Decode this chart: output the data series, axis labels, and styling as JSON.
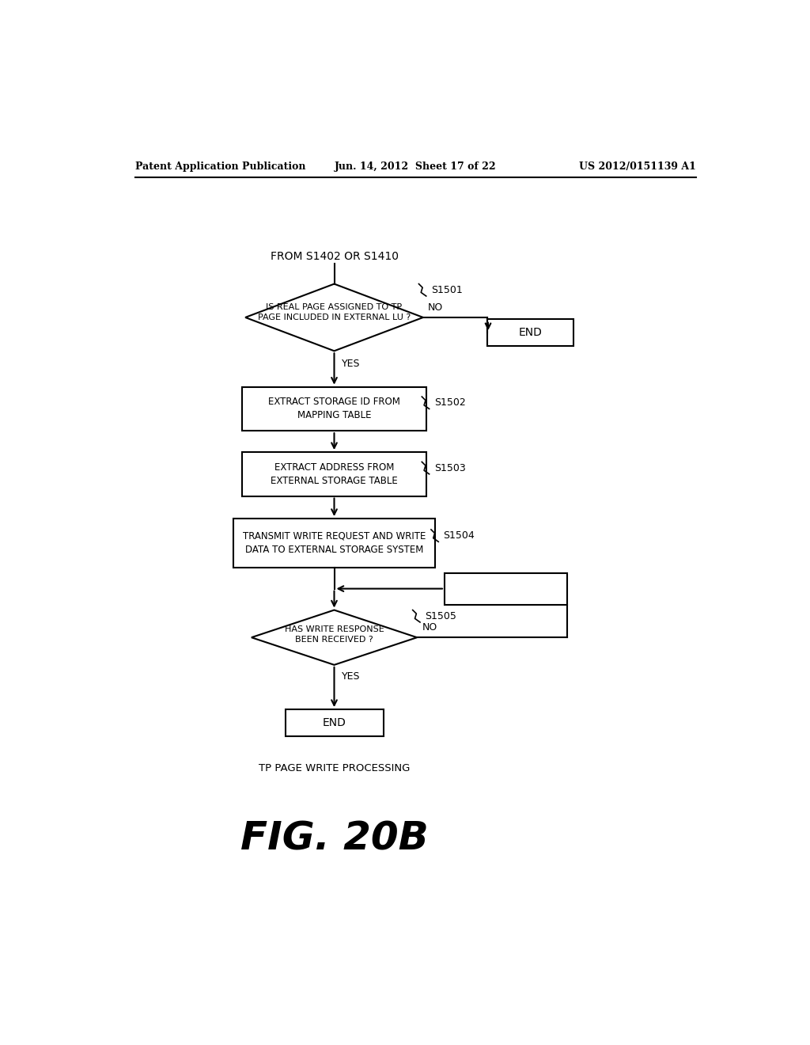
{
  "bg_color": "#ffffff",
  "header_left": "Patent Application Publication",
  "header_mid": "Jun. 14, 2012  Sheet 17 of 22",
  "header_right": "US 2012/0151139 A1",
  "from_label": "FROM S1402 OR S1410",
  "diamond1_label": "IS REAL PAGE ASSIGNED TO TP\nPAGE INCLUDED IN EXTERNAL LU ?",
  "diamond1_step": "S1501",
  "end1_label": "END",
  "yes1_label": "YES",
  "no1_label": "NO",
  "box1_label": "EXTRACT STORAGE ID FROM\nMAPPING TABLE",
  "box1_step": "S1502",
  "box2_label": "EXTRACT ADDRESS FROM\nEXTERNAL STORAGE TABLE",
  "box2_step": "S1503",
  "box3_label": "TRANSMIT WRITE REQUEST AND WRITE\nDATA TO EXTERNAL STORAGE SYSTEM",
  "box3_step": "S1504",
  "diamond2_label": "HAS WRITE RESPONSE\nBEEN RECEIVED ?",
  "diamond2_step": "S1505",
  "yes2_label": "YES",
  "no2_label": "NO",
  "end2_label": "END",
  "caption": "TP PAGE WRITE PROCESSING",
  "fig_label": "FIG. 20B"
}
